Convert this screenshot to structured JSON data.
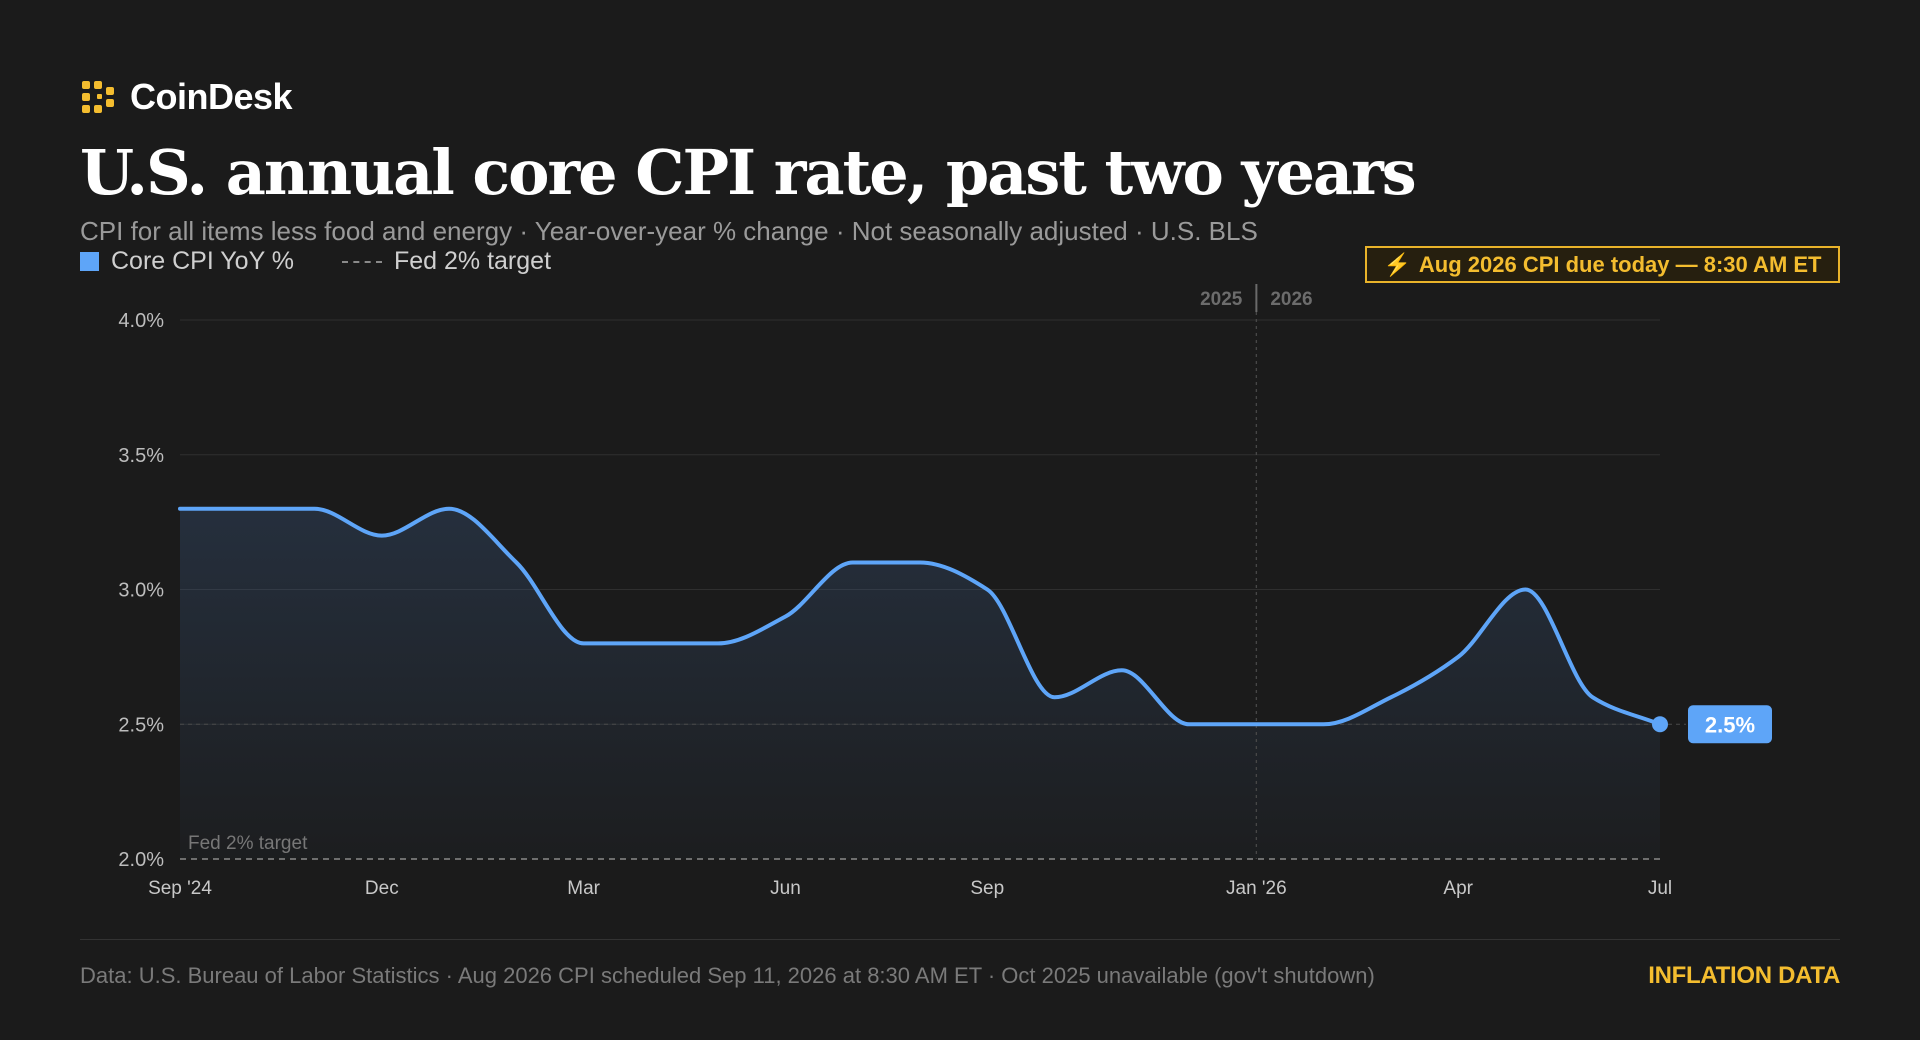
{
  "brand": {
    "name": "CoinDesk",
    "accent": "#f4bd2f",
    "icon": "coindesk-logo-icon"
  },
  "header": {
    "title": "U.S. annual core CPI rate, past two years",
    "subtitle": "CPI for all items less food and energy · Year-over-year % change · Not seasonally adjusted · U.S. BLS"
  },
  "legend": {
    "series_label": "Core CPI YoY %",
    "target_label": "Fed 2% target"
  },
  "callout": {
    "icon": "lightning-icon",
    "glyph": "⚡",
    "text": "Aug 2026 CPI due today — 8:30 AM ET"
  },
  "chart_data": {
    "type": "area",
    "x": [
      "2024-09",
      "2024-10",
      "2024-11",
      "2024-12",
      "2025-01",
      "2025-02",
      "2025-03",
      "2025-04",
      "2025-05",
      "2025-06",
      "2025-07",
      "2025-08",
      "2025-09",
      "2025-10",
      "2025-11",
      "2025-12",
      "2026-01",
      "2026-02",
      "2026-03",
      "2026-04",
      "2026-05",
      "2026-06",
      "2026-07"
    ],
    "x_ticks": [
      {
        "x": "2024-09",
        "label": "Sep '24"
      },
      {
        "x": "2024-12",
        "label": "Dec"
      },
      {
        "x": "2025-03",
        "label": "Mar"
      },
      {
        "x": "2025-06",
        "label": "Jun"
      },
      {
        "x": "2025-09",
        "label": "Sep"
      },
      {
        "x": "2026-01",
        "label": "Jan '26"
      },
      {
        "x": "2026-04",
        "label": "Apr"
      },
      {
        "x": "2026-07",
        "label": "Jul"
      }
    ],
    "series": [
      {
        "name": "Core CPI YoY %",
        "color": "#5ea5f8",
        "values": [
          3.3,
          3.3,
          3.3,
          3.2,
          3.3,
          3.1,
          2.8,
          2.8,
          2.8,
          2.9,
          3.1,
          3.1,
          3.0,
          2.6,
          2.7,
          2.5,
          2.5,
          2.5,
          2.6,
          2.75,
          3.0,
          2.6,
          2.5
        ]
      }
    ],
    "ylim": [
      2.0,
      4.0
    ],
    "y_ticks": [
      {
        "value": 4.0,
        "label": "4.0%"
      },
      {
        "value": 3.5,
        "label": "3.5%"
      },
      {
        "value": 3.0,
        "label": "3.0%"
      },
      {
        "value": 2.5,
        "label": "2.5%"
      },
      {
        "value": 2.0,
        "label": "2.0%"
      }
    ],
    "grid": true,
    "target": {
      "value": 2.0,
      "label": "Fed 2% target",
      "color": "#8a8a8a"
    },
    "year_divider": {
      "x": "2026-01",
      "left_label": "2025",
      "right_label": "2026"
    },
    "last_value_label": "2.5%"
  },
  "footer": {
    "note": "Data: U.S. Bureau of Labor Statistics · Aug 2026 CPI scheduled Sep 11, 2026 at 8:30 AM ET · Oct 2025 unavailable (gov't shutdown)",
    "tag": "INFLATION DATA"
  }
}
